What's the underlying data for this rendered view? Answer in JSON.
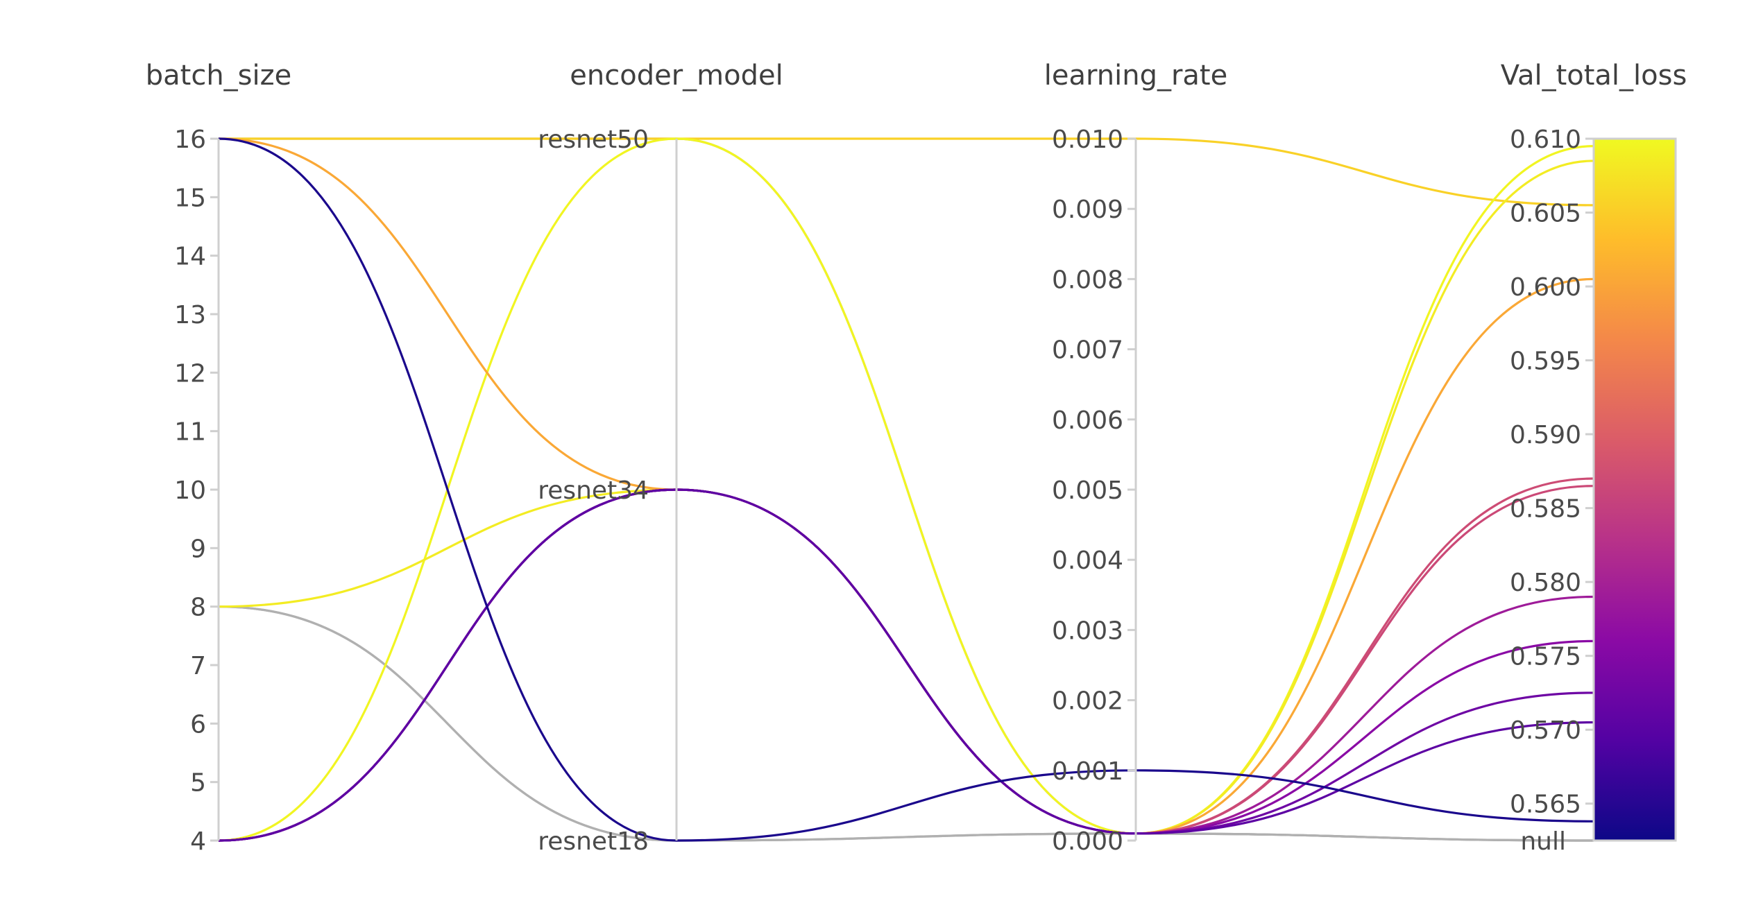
{
  "chart_data": {
    "type": "parallel_coordinates",
    "axes": [
      {
        "name": "batch_size",
        "kind": "numeric",
        "range": [
          4,
          16
        ],
        "ticks": [
          "16",
          "15",
          "14",
          "13",
          "12",
          "11",
          "10",
          "9",
          "8",
          "7",
          "6",
          "5",
          "4"
        ],
        "tick_values": [
          16,
          15,
          14,
          13,
          12,
          11,
          10,
          9,
          8,
          7,
          6,
          5,
          4
        ]
      },
      {
        "name": "encoder_model",
        "kind": "categorical",
        "categories": [
          "resnet18",
          "resnet34",
          "resnet50"
        ]
      },
      {
        "name": "learning_rate",
        "kind": "numeric",
        "range": [
          0,
          0.01
        ],
        "ticks": [
          "0.010",
          "0.009",
          "0.008",
          "0.007",
          "0.006",
          "0.005",
          "0.004",
          "0.003",
          "0.002",
          "0.001",
          "0.000"
        ],
        "tick_values": [
          0.01,
          0.009,
          0.008,
          0.007,
          0.006,
          0.005,
          0.004,
          0.003,
          0.002,
          0.001,
          0.0
        ]
      },
      {
        "name": "Val_total_loss",
        "kind": "numeric",
        "range": [
          0.5625,
          0.61
        ],
        "ticks": [
          "0.610",
          "0.605",
          "0.600",
          "0.595",
          "0.590",
          "0.585",
          "0.580",
          "0.575",
          "0.570",
          "0.565"
        ],
        "tick_values": [
          0.61,
          0.605,
          0.6,
          0.595,
          0.59,
          0.585,
          0.58,
          0.575,
          0.57,
          0.565
        ],
        "null_label": "null"
      }
    ],
    "colorscale": {
      "name": "plasma",
      "range": [
        0.5625,
        0.61
      ],
      "stops": [
        "#0d0887",
        "#5302a3",
        "#8b0aa5",
        "#b83289",
        "#db5c68",
        "#f48849",
        "#febd2a",
        "#f0f921"
      ]
    },
    "null_color": "#b0b0b0",
    "runs": [
      {
        "batch_size": 16,
        "encoder_model": "resnet50",
        "learning_rate": 0.01,
        "Val_total_loss": 0.6055
      },
      {
        "batch_size": 4,
        "encoder_model": "resnet50",
        "learning_rate": 0.0001,
        "Val_total_loss": 0.6095
      },
      {
        "batch_size": 8,
        "encoder_model": "resnet34",
        "learning_rate": 0.0001,
        "Val_total_loss": 0.6085
      },
      {
        "batch_size": 16,
        "encoder_model": "resnet34",
        "learning_rate": 0.0001,
        "Val_total_loss": 0.6005
      },
      {
        "batch_size": 4,
        "encoder_model": "resnet34",
        "learning_rate": 0.0001,
        "Val_total_loss": 0.587
      },
      {
        "batch_size": 4,
        "encoder_model": "resnet34",
        "learning_rate": 0.0001,
        "Val_total_loss": 0.5865
      },
      {
        "batch_size": 4,
        "encoder_model": "resnet34",
        "learning_rate": 0.0001,
        "Val_total_loss": 0.579
      },
      {
        "batch_size": 4,
        "encoder_model": "resnet34",
        "learning_rate": 0.0001,
        "Val_total_loss": 0.576
      },
      {
        "batch_size": 4,
        "encoder_model": "resnet34",
        "learning_rate": 0.0001,
        "Val_total_loss": 0.5725
      },
      {
        "batch_size": 4,
        "encoder_model": "resnet34",
        "learning_rate": 0.0001,
        "Val_total_loss": 0.5705
      },
      {
        "batch_size": 16,
        "encoder_model": "resnet18",
        "learning_rate": 0.001,
        "Val_total_loss": 0.5638
      },
      {
        "batch_size": 16,
        "encoder_model": "resnet50",
        "learning_rate": 0.0001,
        "Val_total_loss": null
      },
      {
        "batch_size": 8,
        "encoder_model": "resnet18",
        "learning_rate": 0.0001,
        "Val_total_loss": null
      },
      {
        "batch_size": 8,
        "encoder_model": "resnet18",
        "learning_rate": 0.0001,
        "Val_total_loss": null
      }
    ]
  }
}
